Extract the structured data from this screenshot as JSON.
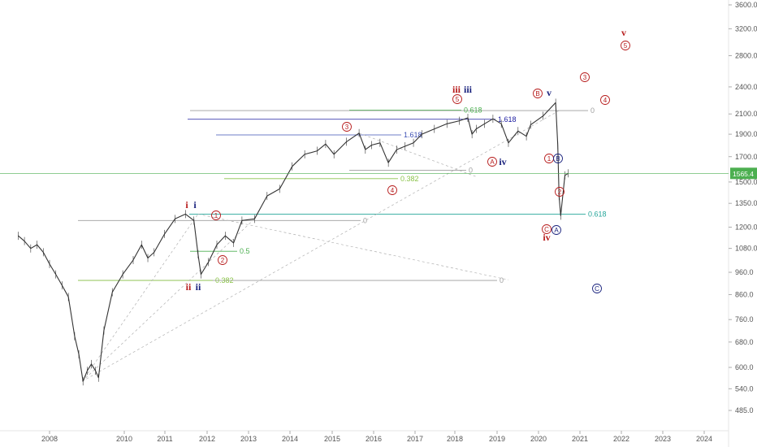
{
  "chart_data": {
    "type": "line",
    "y_scale": "log",
    "grid": false,
    "xlim": [
      2007.45,
      2025.0
    ],
    "ylim": [
      448,
      3700
    ],
    "x_ticks": [
      "2008",
      "2010",
      "2011",
      "2012",
      "2013",
      "2014",
      "2015",
      "2016",
      "2017",
      "2018",
      "2019",
      "2020",
      "2021",
      "2022",
      "2023",
      "2024"
    ],
    "y_ticks": [
      "3600.0",
      "3200.0",
      "2800.0",
      "2400.0",
      "2100.0",
      "1900.0",
      "1700.0",
      "1500.0",
      "1350.0",
      "1200.0",
      "1080.0",
      "960.0",
      "860.0",
      "760.0",
      "680.0",
      "600.0",
      "540.0",
      "485.0"
    ],
    "last_price": "1565.4",
    "series": [
      {
        "x": [
          2007.25,
          2007.4,
          2007.55,
          2007.7,
          2007.85,
          2008.0,
          2008.15,
          2008.3,
          2008.45,
          2008.6,
          2008.7,
          2008.8,
          2008.9,
          2009.0,
          2009.1,
          2009.17,
          2009.3,
          2009.5,
          2009.75,
          2010.0,
          2010.2,
          2010.35,
          2010.5,
          2010.75,
          2011.0,
          2011.25,
          2011.45,
          2011.55,
          2011.62,
          2011.8,
          2012.0,
          2012.2,
          2012.4,
          2012.6,
          2012.9,
          2013.2,
          2013.5,
          2013.8,
          2014.1,
          2014.4,
          2014.6,
          2014.8,
          2015.1,
          2015.4,
          2015.55,
          2015.7,
          2015.9,
          2016.1,
          2016.3,
          2016.5,
          2016.7,
          2016.9,
          2017.2,
          2017.5,
          2017.8,
          2018.0,
          2018.1,
          2018.2,
          2018.4,
          2018.6,
          2018.8,
          2018.97,
          2019.2,
          2019.4,
          2019.5,
          2019.8,
          2020.1,
          2020.15,
          2020.18,
          2020.22,
          2020.32,
          2020.4
        ],
        "values": [
          1150,
          1120,
          1080,
          1100,
          1060,
          1000,
          950,
          900,
          850,
          700,
          640,
          560,
          590,
          610,
          590,
          570,
          720,
          870,
          950,
          1020,
          1100,
          1030,
          1060,
          1160,
          1250,
          1280,
          1240,
          1050,
          950,
          1010,
          1100,
          1150,
          1110,
          1240,
          1250,
          1400,
          1450,
          1620,
          1720,
          1750,
          1810,
          1720,
          1830,
          1910,
          1760,
          1800,
          1820,
          1650,
          1760,
          1790,
          1820,
          1900,
          1950,
          2000,
          2030,
          2060,
          1900,
          1950,
          2000,
          2050,
          2000,
          1820,
          1930,
          1880,
          1990,
          2080,
          2220,
          1800,
          1400,
          1270,
          1550,
          1565.4
        ]
      }
    ],
    "horizontal_levels": [
      {
        "label": "0",
        "value": 1240,
        "color": "#9e9e9e"
      },
      {
        "label": "0",
        "value": 922,
        "color": "#9e9e9e"
      },
      {
        "label": "0",
        "value": 1590,
        "color": "#9e9e9e"
      },
      {
        "label": "0",
        "value": 2135,
        "color": "#9e9e9e"
      },
      {
        "label": "1.618",
        "value": 1893,
        "color": "#3f51b5"
      },
      {
        "label": "1.618",
        "value": 2045,
        "color": "#1a1aa0"
      },
      {
        "label": "0.618",
        "value": 2140,
        "color": "#4caf50"
      },
      {
        "label": "0.5",
        "value": 1065,
        "color": "#4caf50"
      },
      {
        "label": "0.382",
        "value": 922,
        "color": "#8bc34a"
      },
      {
        "label": "0.382",
        "value": 1525,
        "color": "#8bc34a"
      },
      {
        "label": "0.618",
        "value": 1280,
        "color": "#26a69a"
      }
    ],
    "wave_labels": {
      "red": [
        "i",
        "ii",
        "iii",
        "iv",
        "v"
      ],
      "blue": [
        "i",
        "ii",
        "iii",
        "iv",
        "v"
      ],
      "circled_red": [
        "1",
        "2",
        "3",
        "4",
        "5",
        "1",
        "2",
        "3",
        "4",
        "5",
        "B",
        "C",
        "1",
        "2",
        "A"
      ],
      "circled_blue": [
        "A",
        "B",
        "C"
      ]
    },
    "colors": {
      "price": "#333333",
      "red_label": "#b71c1c",
      "blue_label": "#1a237e",
      "last_price_line": "#4caf50",
      "last_price_bg": "#4caf50"
    }
  }
}
